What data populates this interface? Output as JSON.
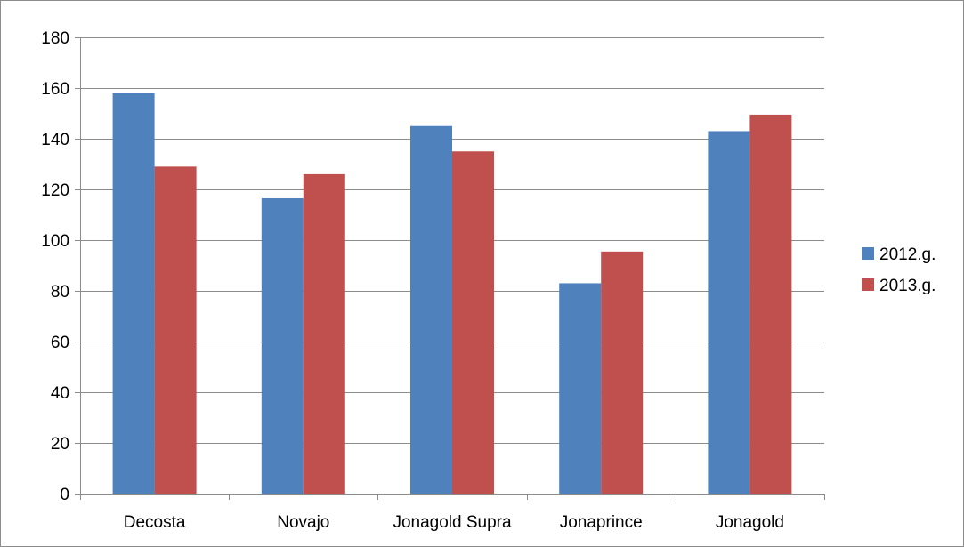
{
  "chart_data": {
    "type": "bar",
    "title": "",
    "xlabel": "",
    "ylabel": "",
    "categories": [
      "Decosta",
      "Novajo",
      "Jonagold Supra",
      "Jonaprince",
      "Jonagold"
    ],
    "series": [
      {
        "name": "2012.g.",
        "color": "#4f81bd",
        "values": [
          158,
          116.5,
          145,
          83,
          143
        ]
      },
      {
        "name": "2013.g.",
        "color": "#c0504d",
        "values": [
          129,
          126,
          135,
          95.5,
          149.5
        ]
      }
    ],
    "ylim": [
      0,
      180
    ],
    "yticks": [
      "0",
      "20",
      "40",
      "60",
      "80",
      "100",
      "120",
      "140",
      "160",
      "180"
    ],
    "grid": true,
    "legend_position": "right",
    "gridline_color": "#8c8c8c"
  }
}
